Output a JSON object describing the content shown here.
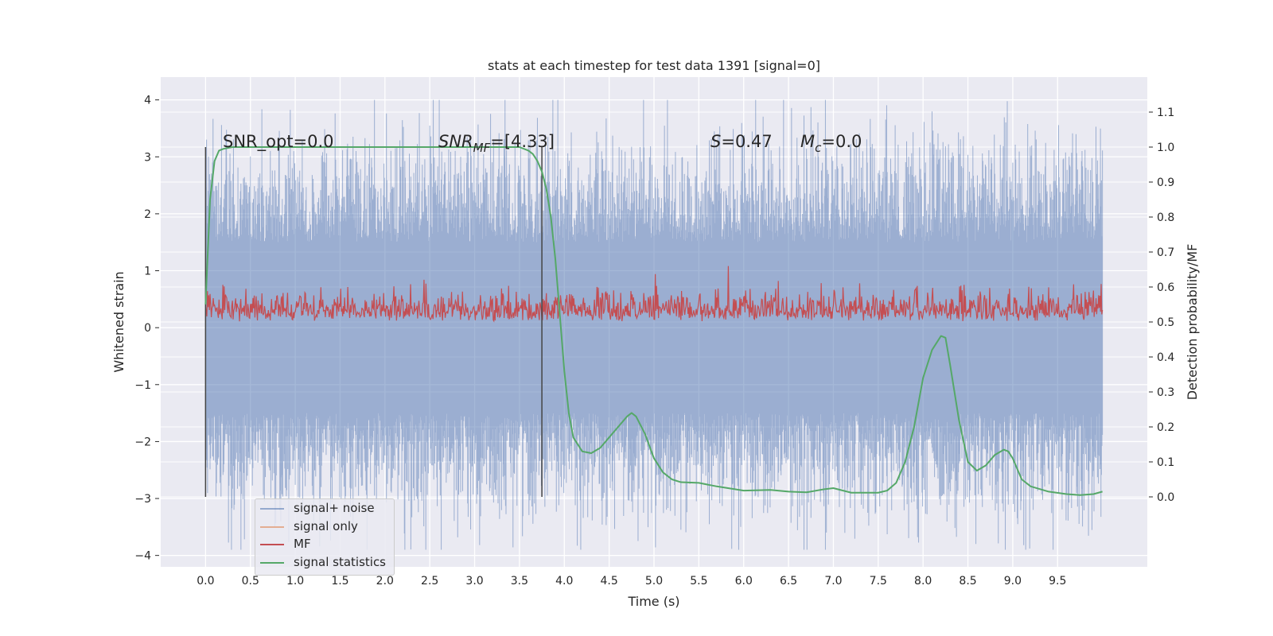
{
  "chart_data": {
    "type": "line",
    "title": "stats at each timestep for test data 1391 [signal=0]",
    "xlabel": "Time (s)",
    "ylabel": "Whitened strain",
    "y2label": "Detection probability/MF",
    "xlim": [
      -0.5,
      10.5
    ],
    "ylim": [
      -4.2,
      4.4
    ],
    "y2lim": [
      -0.2,
      1.2
    ],
    "xticks": [
      "0.0",
      "0.5",
      "1.0",
      "1.5",
      "2.0",
      "2.5",
      "3.0",
      "3.5",
      "4.0",
      "4.5",
      "5.0",
      "5.5",
      "6.0",
      "6.5",
      "7.0",
      "7.5",
      "8.0",
      "8.5",
      "9.0",
      "9.5"
    ],
    "yticks": [
      "−4",
      "−3",
      "−2",
      "−1",
      "0",
      "1",
      "2",
      "3",
      "4"
    ],
    "y2ticks": [
      "0.0",
      "0.1",
      "0.2",
      "0.3",
      "0.4",
      "0.5",
      "0.6",
      "0.7",
      "0.8",
      "0.9",
      "1.0",
      "1.1"
    ],
    "grid": true,
    "legend_position": "lower-left",
    "annotations": {
      "snr_opt": "SNR_opt=0.0",
      "snr_mf_base": "SNR",
      "snr_mf_sub": "MF",
      "snr_mf_value": "=[4.33]",
      "s_symbol": "S",
      "s_value": "=0.47",
      "mc_base": "M",
      "mc_sub": "c",
      "mc_value": "=0.0"
    },
    "vlines": [
      0.0,
      3.75
    ],
    "series": [
      {
        "name": "signal+ noise",
        "color": "#4c72b0",
        "axis": "left",
        "t_range": [
          0.0,
          10.0
        ],
        "envelope_high": [
          2.0,
          4.0
        ],
        "envelope_low": [
          -1.5,
          -3.9
        ]
      },
      {
        "name": "signal only",
        "color": "#dd8452",
        "axis": "left",
        "values": "≈0 throughout"
      },
      {
        "name": "MF",
        "color": "#c44e52",
        "axis": "right",
        "t_range": [
          0.0,
          10.0
        ],
        "baseline": 0.5,
        "max": 0.66
      },
      {
        "name": "signal statistics",
        "color": "#55a868",
        "axis": "right",
        "x": [
          0.0,
          0.05,
          0.1,
          0.15,
          0.2,
          0.3,
          0.5,
          1.0,
          2.0,
          3.0,
          3.5,
          3.6,
          3.65,
          3.7,
          3.75,
          3.8,
          3.85,
          3.9,
          3.95,
          4.0,
          4.05,
          4.1,
          4.2,
          4.3,
          4.4,
          4.5,
          4.6,
          4.7,
          4.75,
          4.8,
          4.9,
          5.0,
          5.1,
          5.2,
          5.3,
          5.5,
          5.7,
          6.0,
          6.3,
          6.5,
          6.7,
          6.9,
          7.0,
          7.2,
          7.5,
          7.6,
          7.7,
          7.8,
          7.9,
          8.0,
          8.1,
          8.2,
          8.25,
          8.3,
          8.4,
          8.5,
          8.6,
          8.7,
          8.8,
          8.9,
          8.95,
          9.0,
          9.1,
          9.2,
          9.4,
          9.6,
          9.75,
          9.9,
          10.0
        ],
        "y": [
          0.55,
          0.85,
          0.96,
          0.99,
          0.995,
          1.0,
          1.0,
          1.0,
          1.0,
          1.0,
          1.0,
          0.99,
          0.98,
          0.96,
          0.93,
          0.88,
          0.8,
          0.68,
          0.52,
          0.36,
          0.24,
          0.17,
          0.13,
          0.125,
          0.14,
          0.17,
          0.2,
          0.23,
          0.24,
          0.23,
          0.18,
          0.11,
          0.07,
          0.05,
          0.042,
          0.04,
          0.03,
          0.018,
          0.02,
          0.015,
          0.013,
          0.022,
          0.025,
          0.012,
          0.012,
          0.018,
          0.04,
          0.1,
          0.2,
          0.34,
          0.42,
          0.46,
          0.455,
          0.38,
          0.22,
          0.1,
          0.075,
          0.09,
          0.12,
          0.135,
          0.13,
          0.11,
          0.05,
          0.03,
          0.015,
          0.008,
          0.005,
          0.008,
          0.015
        ]
      }
    ]
  }
}
